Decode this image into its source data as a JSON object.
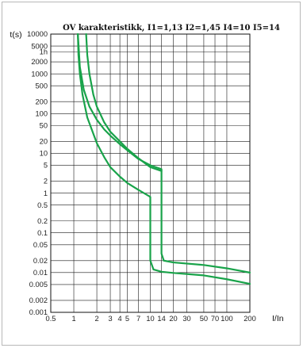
{
  "chart_data": {
    "type": "line",
    "title": "OV karakteristikk, I1=1,13 I2=1,45 I4=10 I5=14",
    "xlabel": "I/In",
    "ylabel": "t(s)",
    "xscale": "log",
    "yscale": "log",
    "xlim": [
      0.5,
      200
    ],
    "ylim": [
      0.001,
      10000
    ],
    "grid": true,
    "x_ticks": [
      {
        "value": 0.5,
        "label": "0.5"
      },
      {
        "value": 1,
        "label": "1"
      },
      {
        "value": 2,
        "label": "2"
      },
      {
        "value": 3,
        "label": "3"
      },
      {
        "value": 4,
        "label": "4"
      },
      {
        "value": 5,
        "label": "5"
      },
      {
        "value": 7,
        "label": "7"
      },
      {
        "value": 10,
        "label": "10"
      },
      {
        "value": 14,
        "label": "14"
      },
      {
        "value": 20,
        "label": "20"
      },
      {
        "value": 30,
        "label": "30"
      },
      {
        "value": 50,
        "label": "50"
      },
      {
        "value": 70,
        "label": "70"
      },
      {
        "value": 100,
        "label": "100"
      },
      {
        "value": 200,
        "label": "200"
      }
    ],
    "y_ticks": [
      {
        "value": 10000,
        "label": "10000"
      },
      {
        "value": 5000,
        "label": "5000"
      },
      {
        "value": 3600,
        "label": "1h"
      },
      {
        "value": 2000,
        "label": "2000"
      },
      {
        "value": 1000,
        "label": "1000"
      },
      {
        "value": 500,
        "label": "500"
      },
      {
        "value": 200,
        "label": "200"
      },
      {
        "value": 100,
        "label": "100"
      },
      {
        "value": 50,
        "label": "50"
      },
      {
        "value": 20,
        "label": "20"
      },
      {
        "value": 10,
        "label": "10"
      },
      {
        "value": 5,
        "label": "5"
      },
      {
        "value": 2,
        "label": "2"
      },
      {
        "value": 1,
        "label": "1"
      },
      {
        "value": 0.5,
        "label": "0.5"
      },
      {
        "value": 0.2,
        "label": "0.2"
      },
      {
        "value": 0.1,
        "label": "0.1"
      },
      {
        "value": 0.05,
        "label": "0.05"
      },
      {
        "value": 0.02,
        "label": "0.02"
      },
      {
        "value": 0.01,
        "label": "0.01"
      },
      {
        "value": 0.005,
        "label": "0.005"
      },
      {
        "value": 0.002,
        "label": "0.002"
      },
      {
        "value": 0.001,
        "label": "0.001"
      }
    ],
    "series": [
      {
        "color": "#19a34a",
        "points": [
          [
            1.13,
            10000
          ],
          [
            1.2,
            1500
          ],
          [
            1.35,
            400
          ],
          [
            1.6,
            150
          ],
          [
            2,
            70
          ],
          [
            2.5,
            40
          ],
          [
            3,
            28
          ],
          [
            4,
            17
          ],
          [
            5,
            12
          ],
          [
            7,
            7.2
          ],
          [
            10,
            5
          ],
          [
            14,
            4
          ],
          [
            14,
            0.03
          ],
          [
            15,
            0.02
          ],
          [
            20,
            0.018
          ],
          [
            50,
            0.0155
          ],
          [
            100,
            0.0128
          ],
          [
            200,
            0.01
          ]
        ]
      },
      {
        "color": "#19a34a",
        "points": [
          [
            1.45,
            10000
          ],
          [
            1.5,
            3000
          ],
          [
            1.6,
            1000
          ],
          [
            1.8,
            300
          ],
          [
            2,
            150
          ],
          [
            2.5,
            60
          ],
          [
            3,
            35
          ],
          [
            4,
            20
          ],
          [
            5,
            13
          ],
          [
            7,
            7.5
          ],
          [
            10,
            4.5
          ],
          [
            14,
            3.6
          ]
        ]
      },
      {
        "color": "#19a34a",
        "points": [
          [
            1.13,
            10000
          ],
          [
            1.15,
            3000
          ],
          [
            1.2,
            1000
          ],
          [
            1.3,
            300
          ],
          [
            1.5,
            80
          ],
          [
            2,
            18
          ],
          [
            2.5,
            8
          ],
          [
            3,
            4.5
          ],
          [
            4,
            2.6
          ],
          [
            5,
            1.8
          ],
          [
            7,
            1.2
          ],
          [
            9.5,
            0.85
          ],
          [
            10,
            0.8
          ],
          [
            10,
            0.02
          ],
          [
            11,
            0.012
          ],
          [
            14,
            0.0105
          ],
          [
            20,
            0.0098
          ],
          [
            50,
            0.0085
          ],
          [
            100,
            0.0068
          ],
          [
            200,
            0.0052
          ]
        ]
      }
    ]
  }
}
